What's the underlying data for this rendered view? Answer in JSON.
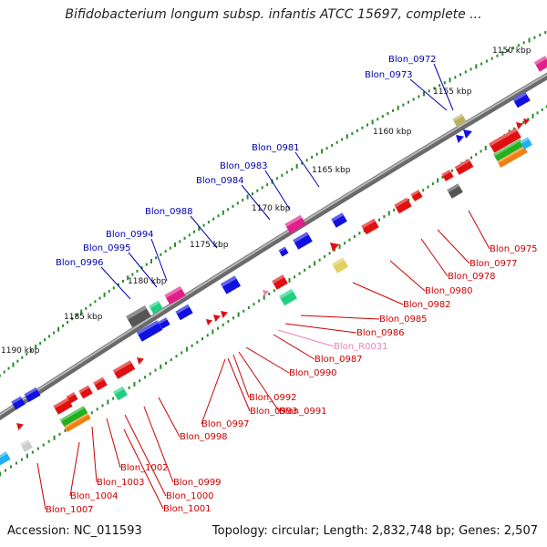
{
  "title": "Bifidobacterium longum subsp. infantis ATCC 15697, complete ...",
  "footer": {
    "accession": "Accession: NC_011593",
    "info": "Topology: circular; Length: 2,832,748 bp; Genes: 2,507"
  },
  "ticks": [
    "1150 kbp",
    "1155 kbp",
    "1160 kbp",
    "1165 kbp",
    "1170 kbp",
    "1175 kbp",
    "1180 kbp",
    "1185 kbp",
    "1190 kbp"
  ],
  "upper_labels": [
    "Blon_0972",
    "Blon_0973",
    "Blon_0981",
    "Blon_0983",
    "Blon_0984",
    "Blon_0988",
    "Blon_0994",
    "Blon_0995",
    "Blon_0996"
  ],
  "lower_labels": [
    "Blon_0975",
    "Blon_0977",
    "Blon_0978",
    "Blon_0980",
    "Blon_0982",
    "Blon_0985",
    "Blon_0986",
    "Blon_R0031",
    "Blon_0987",
    "Blon_0990",
    "Blon_0991",
    "Blon_0992",
    "Blon_0993",
    "Blon_0997",
    "Blon_0998",
    "Blon_0999",
    "Blon_1000",
    "Blon_1001",
    "Blon_1002",
    "Blon_1003",
    "Blon_1004",
    "Blon_1007"
  ],
  "colors": {
    "forward": "#1010e0",
    "reverse": "#e01010",
    "rna": "#f080b8",
    "backbone": "#8a8a8a",
    "ticks": "#2a8a2a",
    "upper_text": "#0000b0",
    "lower_text": "#cc0000"
  }
}
